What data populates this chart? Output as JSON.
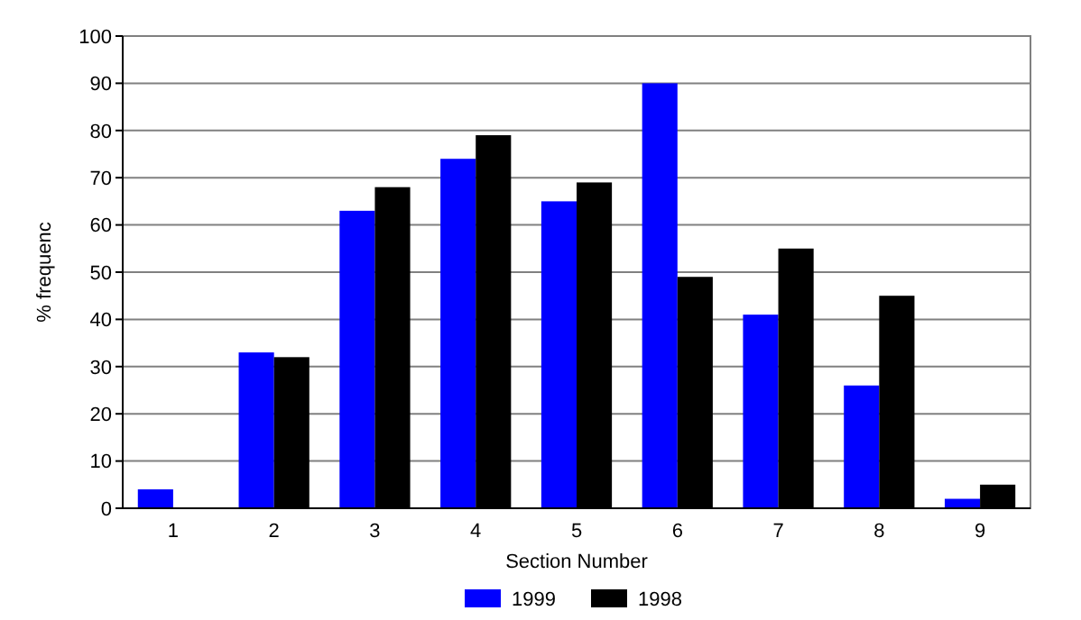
{
  "chart_data": {
    "type": "bar",
    "xlabel": "Section Number",
    "ylabel": "% frequenc",
    "categories": [
      "1",
      "2",
      "3",
      "4",
      "5",
      "6",
      "7",
      "8",
      "9"
    ],
    "series": [
      {
        "name": "1999",
        "color": "#0000ff",
        "values": [
          4,
          33,
          63,
          74,
          65,
          90,
          41,
          26,
          2
        ]
      },
      {
        "name": "1998",
        "color": "#000000",
        "values": [
          0,
          32,
          68,
          79,
          69,
          49,
          55,
          45,
          5
        ]
      }
    ],
    "ylim": [
      0,
      100
    ],
    "yticks": [
      0,
      10,
      20,
      30,
      40,
      50,
      60,
      70,
      80,
      90,
      100
    ],
    "grid": "y",
    "legend": "bottom"
  }
}
